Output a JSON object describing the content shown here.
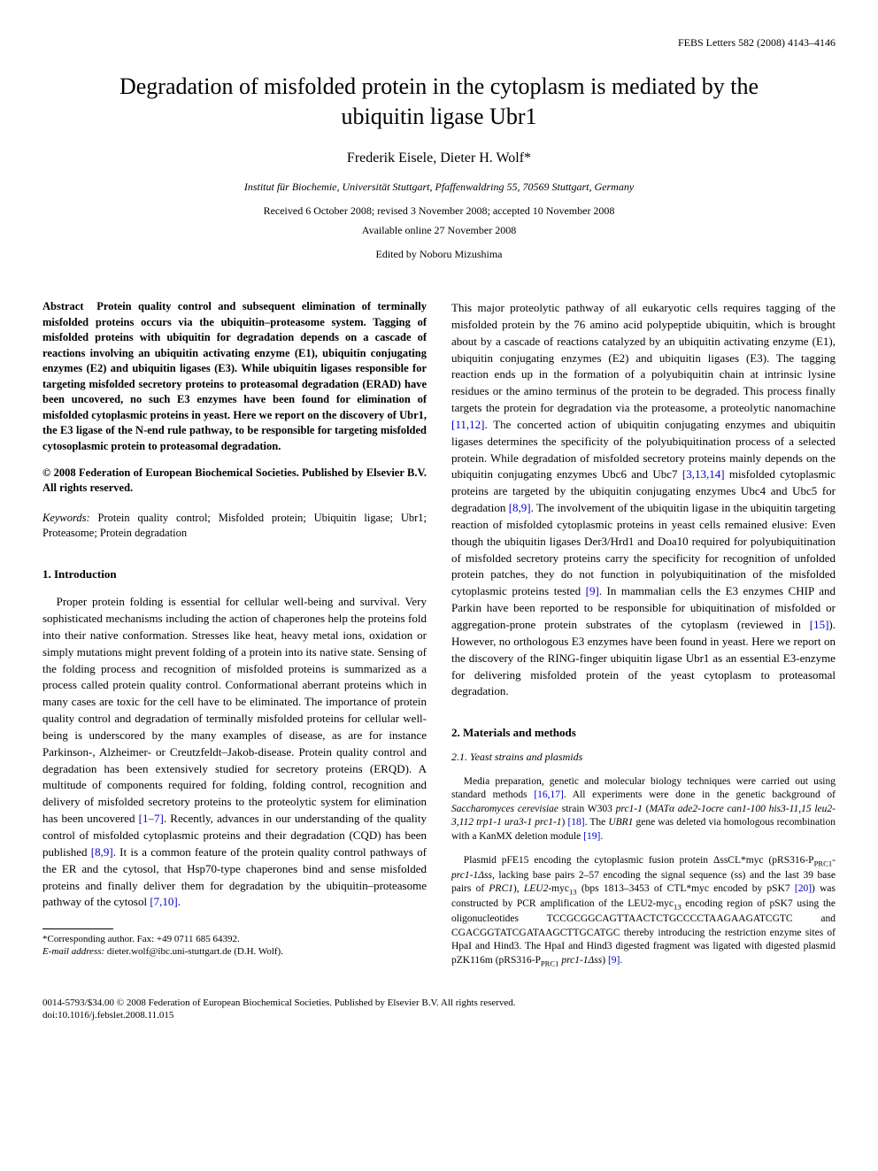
{
  "journal_header": "FEBS Letters 582 (2008) 4143–4146",
  "title": "Degradation of misfolded protein in the cytoplasm is mediated by the ubiquitin ligase Ubr1",
  "authors": "Frederik Eisele, Dieter H. Wolf*",
  "affiliation": "Institut für Biochemie, Universität Stuttgart, Pfaffenwaldring 55, 70569 Stuttgart, Germany",
  "dates_received": "Received 6 October 2008; revised 3 November 2008; accepted 10 November 2008",
  "available_online": "Available online 27 November 2008",
  "editor": "Edited by Noboru Mizushima",
  "abstract": {
    "label": "Abstract",
    "text": "Protein quality control and subsequent elimination of terminally misfolded proteins occurs via the ubiquitin–proteasome system. Tagging of misfolded proteins with ubiquitin for degradation depends on a cascade of reactions involving an ubiquitin activating enzyme (E1), ubiquitin conjugating enzymes (E2) and ubiquitin ligases (E3). While ubiquitin ligases responsible for targeting misfolded secretory proteins to proteasomal degradation (ERAD) have been uncovered, no such E3 enzymes have been found for elimination of misfolded cytoplasmic proteins in yeast. Here we report on the discovery of Ubr1, the E3 ligase of the N-end rule pathway, to be responsible for targeting misfolded cytosoplasmic protein to proteasomal degradation."
  },
  "copyright": "© 2008 Federation of European Biochemical Societies. Published by Elsevier B.V. All rights reserved.",
  "keywords": {
    "label": "Keywords:",
    "text": "Protein quality control; Misfolded protein; Ubiquitin ligase; Ubr1; Proteasome; Protein degradation"
  },
  "sections": {
    "intro_heading": "1. Introduction",
    "intro_p1a": "Proper protein folding is essential for cellular well-being and survival. Very sophisticated mechanisms including the action of chaperones help the proteins fold into their native conformation. Stresses like heat, heavy metal ions, oxidation or simply mutations might prevent folding of a protein into its native state. Sensing of the folding process and recognition of misfolded proteins is summarized as a process called protein quality control. Conformational aberrant proteins which in many cases are toxic for the cell have to be eliminated. The importance of protein quality control and degradation of terminally misfolded proteins for cellular well-being is underscored by the many examples of disease, as are for instance Parkinson-, Alzheimer- or Creutzfeldt–Jakob-disease. Protein quality control and degradation has been extensively studied for secretory proteins (ERQD). A multitude of components required for folding, folding control, recognition and delivery of misfolded secretory proteins to the proteolytic system for elimination has been uncovered ",
    "intro_ref1": "[1–7]",
    "intro_p1b": ". Recently, advances in our understanding of the quality control of misfolded cytoplasmic proteins and their degradation (CQD) has been published ",
    "intro_ref2": "[8,9]",
    "intro_p1c": ". It is a common feature of the protein quality control pathways of the ER and the cytosol, that Hsp70-type chaperones bind and sense misfolded proteins and finally deliver them for degradation by the ubiquitin–proteasome pathway of the cytosol ",
    "intro_ref3": "[7,10]",
    "intro_p1d": ". ",
    "col2_p1a": "This major proteolytic pathway of all eukaryotic cells requires tagging of the misfolded protein by the 76 amino acid polypeptide ubiquitin, which is brought about by a cascade of reactions catalyzed by an ubiquitin activating enzyme (E1), ubiquitin conjugating enzymes (E2) and ubiquitin ligases (E3). The tagging reaction ends up in the formation of a polyubiquitin chain at intrinsic lysine residues or the amino terminus of the protein to be degraded. This process finally targets the protein for degradation via the proteasome, a proteolytic nanomachine ",
    "col2_ref1": "[11,12]",
    "col2_p1b": ". The concerted action of ubiquitin conjugating enzymes and ubiquitin ligases determines the specificity of the polyubiquitination process of a selected protein. While degradation of misfolded secretory proteins mainly depends on the ubiquitin conjugating enzymes Ubc6 and Ubc7 ",
    "col2_ref2": "[3,13,14]",
    "col2_p1c": " misfolded cytoplasmic proteins are targeted by the ubiquitin conjugating enzymes Ubc4 and Ubc5 for degradation ",
    "col2_ref3": "[8,9]",
    "col2_p1d": ". The involvement of the ubiquitin ligase in the ubiquitin targeting reaction of misfolded cytoplasmic proteins in yeast cells remained elusive: Even though the ubiquitin ligases Der3/Hrd1 and Doa10 required for polyubiquitination of misfolded secretory proteins carry the specificity for recognition of unfolded protein patches, they do not function in polyubiquitination of the misfolded cytoplasmic proteins tested ",
    "col2_ref4": "[9]",
    "col2_p1e": ". In mammalian cells the E3 enzymes CHIP and Parkin have been reported to be responsible for ubiquitination of misfolded or aggregation-prone protein substrates of the cytoplasm (reviewed in ",
    "col2_ref5": "[15]",
    "col2_p1f": "). However, no orthologous E3 enzymes have been found in yeast. Here we report on the discovery of the RING-finger ubiquitin ligase Ubr1 as an essential E3-enzyme for delivering misfolded protein of the yeast cytoplasm to proteasomal degradation.",
    "methods_heading": "2. Materials and methods",
    "methods_sub1": "2.1. Yeast strains and plasmids",
    "methods_p1a": "Media preparation, genetic and molecular biology techniques were carried out using standard methods ",
    "methods_ref1": "[16,17]",
    "methods_p1b": ". All experiments were done in the genetic background of ",
    "methods_ital1": "Saccharomyces cerevisiae",
    "methods_p1c": " strain W303 ",
    "methods_ital2": "prc1-1",
    "methods_p1d": " (",
    "methods_ital3": "MATα ade2-1ocre can1-100 his3-11,15 leu2-3,112 trp1-1 ura3-1 prc1-1",
    "methods_p1e": ") ",
    "methods_ref2": "[18]",
    "methods_p1f": ". The ",
    "methods_ital4": "UBR1",
    "methods_p1g": " gene was deleted via homologous recombination with a KanMX deletion module ",
    "methods_ref3": "[19]",
    "methods_p1h": ".",
    "methods_p2a": "Plasmid pFE15 encoding the cytoplasmic fusion protein ΔssCL*myc (pRS316-P",
    "methods_sub_prc1": "PRC1",
    "methods_p2b": "-",
    "methods_ital5": "prc1-1Δss",
    "methods_p2c": ", lacking base pairs 2–57 encoding the signal sequence (ss) and the last 39 base pairs of ",
    "methods_ital6": "PRC1",
    "methods_p2d": "), ",
    "methods_ital7": "LEU2",
    "methods_p2e": "-myc",
    "methods_sub13a": "13",
    "methods_p2f": " (bps 1813–3453 of CTL*myc encoded by pSK7 ",
    "methods_ref4": "[20]",
    "methods_p2g": ") was constructed by PCR amplification of the LEU2-myc",
    "methods_sub13b": "13",
    "methods_p2h": " encoding region of pSK7 using the oligonucleotides TCCGCGGCAGTTAACTCTGCCCCTAAGAAGATCGTC and CGACGGTATCGATAAGCTTGCATGC thereby introducing the restriction enzyme sites of HpaI and Hind3. The HpaI and Hind3 digested fragment was ligated with digested plasmid pZK116m (pRS316-P",
    "methods_sub_prc2": "PRC1",
    "methods_p2i": " ",
    "methods_ital8": "prc1-1Δss",
    "methods_p2j": ") ",
    "methods_ref5": "[9]",
    "methods_p2k": "."
  },
  "footnote": {
    "corresponding": "*Corresponding author. Fax: +49 0711 685 64392.",
    "email_label": "E-mail address:",
    "email": "dieter.wolf@ibc.uni-stuttgart.de (D.H. Wolf)."
  },
  "footer": {
    "line1": "0014-5793/$34.00 © 2008 Federation of European Biochemical Societies. Published by Elsevier B.V. All rights reserved.",
    "line2": "doi:10.1016/j.febslet.2008.11.015"
  }
}
